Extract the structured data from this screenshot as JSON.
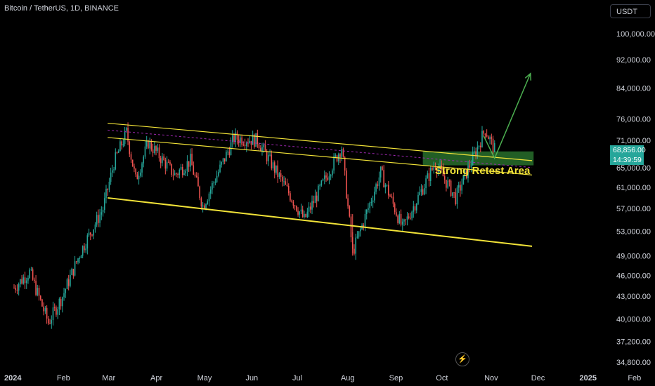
{
  "header": {
    "title": "Bitcoin / TetherUS, 1D, BINANCE",
    "currency": "USDT"
  },
  "price_tag": {
    "price": "68,856.00",
    "countdown": "14:39:59",
    "color": "#26a69a"
  },
  "colors": {
    "up": "#26a69a",
    "down": "#ef5350",
    "channel": "#f2e338",
    "zone": "#2e7d32",
    "arrow": "#4caf50",
    "axis_text": "#d1d4dc"
  },
  "icons": {
    "bolt": "lightning-bolt-icon"
  },
  "chart_data": {
    "type": "candlestick",
    "title": "",
    "xlabel": "",
    "ylabel": "",
    "x_ticks": [
      "2024",
      "Feb",
      "Mar",
      "Apr",
      "May",
      "Jun",
      "Jul",
      "Aug",
      "Sep",
      "Oct",
      "Nov",
      "Dec",
      "2025",
      "Feb"
    ],
    "y_ticks": [
      "100,000.00",
      "92,000.00",
      "84,000.00",
      "76,000.00",
      "71,000.00",
      "65,000.00",
      "61,000.00",
      "57,000.00",
      "53,000.00",
      "49,000.00",
      "46,000.00",
      "43,000.00",
      "40,000.00",
      "37,200.00",
      "34,800.00"
    ],
    "y_scale": "log",
    "ylim": [
      34000,
      118000
    ],
    "grid": false,
    "close_path": [
      [
        "2024-01-01",
        44200
      ],
      [
        "2024-01-11",
        46500
      ],
      [
        "2024-01-23",
        39500
      ],
      [
        "2024-02-01",
        43000
      ],
      [
        "2024-02-13",
        49800
      ],
      [
        "2024-02-27",
        57000
      ],
      [
        "2024-03-05",
        66000
      ],
      [
        "2024-03-13",
        72800
      ],
      [
        "2024-03-19",
        62500
      ],
      [
        "2024-03-27",
        70500
      ],
      [
        "2024-04-13",
        63500
      ],
      [
        "2024-04-23",
        66500
      ],
      [
        "2024-05-01",
        57500
      ],
      [
        "2024-05-21",
        71500
      ],
      [
        "2024-06-05",
        71000
      ],
      [
        "2024-06-24",
        60500
      ],
      [
        "2024-07-05",
        55000
      ],
      [
        "2024-07-29",
        69500
      ],
      [
        "2024-08-05",
        49500
      ],
      [
        "2024-08-23",
        64000
      ],
      [
        "2024-09-06",
        53500
      ],
      [
        "2024-09-27",
        66000
      ],
      [
        "2024-10-10",
        59000
      ],
      [
        "2024-10-29",
        73500
      ],
      [
        "2024-11-04",
        68856
      ]
    ],
    "annotations": [
      {
        "type": "text",
        "text": "Strong Retest Area"
      },
      {
        "type": "channel_upper",
        "points": [
          [
            "2024-03-01",
            75000
          ],
          [
            "2024-11-28",
            66500
          ]
        ]
      },
      {
        "type": "channel_lower",
        "points": [
          [
            "2024-03-01",
            59000
          ],
          [
            "2024-11-28",
            50500
          ]
        ]
      },
      {
        "type": "zone",
        "from": "2024-09-19",
        "to": "2024-11-29",
        "y": [
          65500,
          68500
        ]
      },
      {
        "type": "arrow",
        "points": [
          [
            "2024-10-28",
            72000
          ],
          [
            "2024-11-04",
            67000
          ],
          [
            "2024-11-27",
            88000
          ]
        ]
      }
    ]
  }
}
